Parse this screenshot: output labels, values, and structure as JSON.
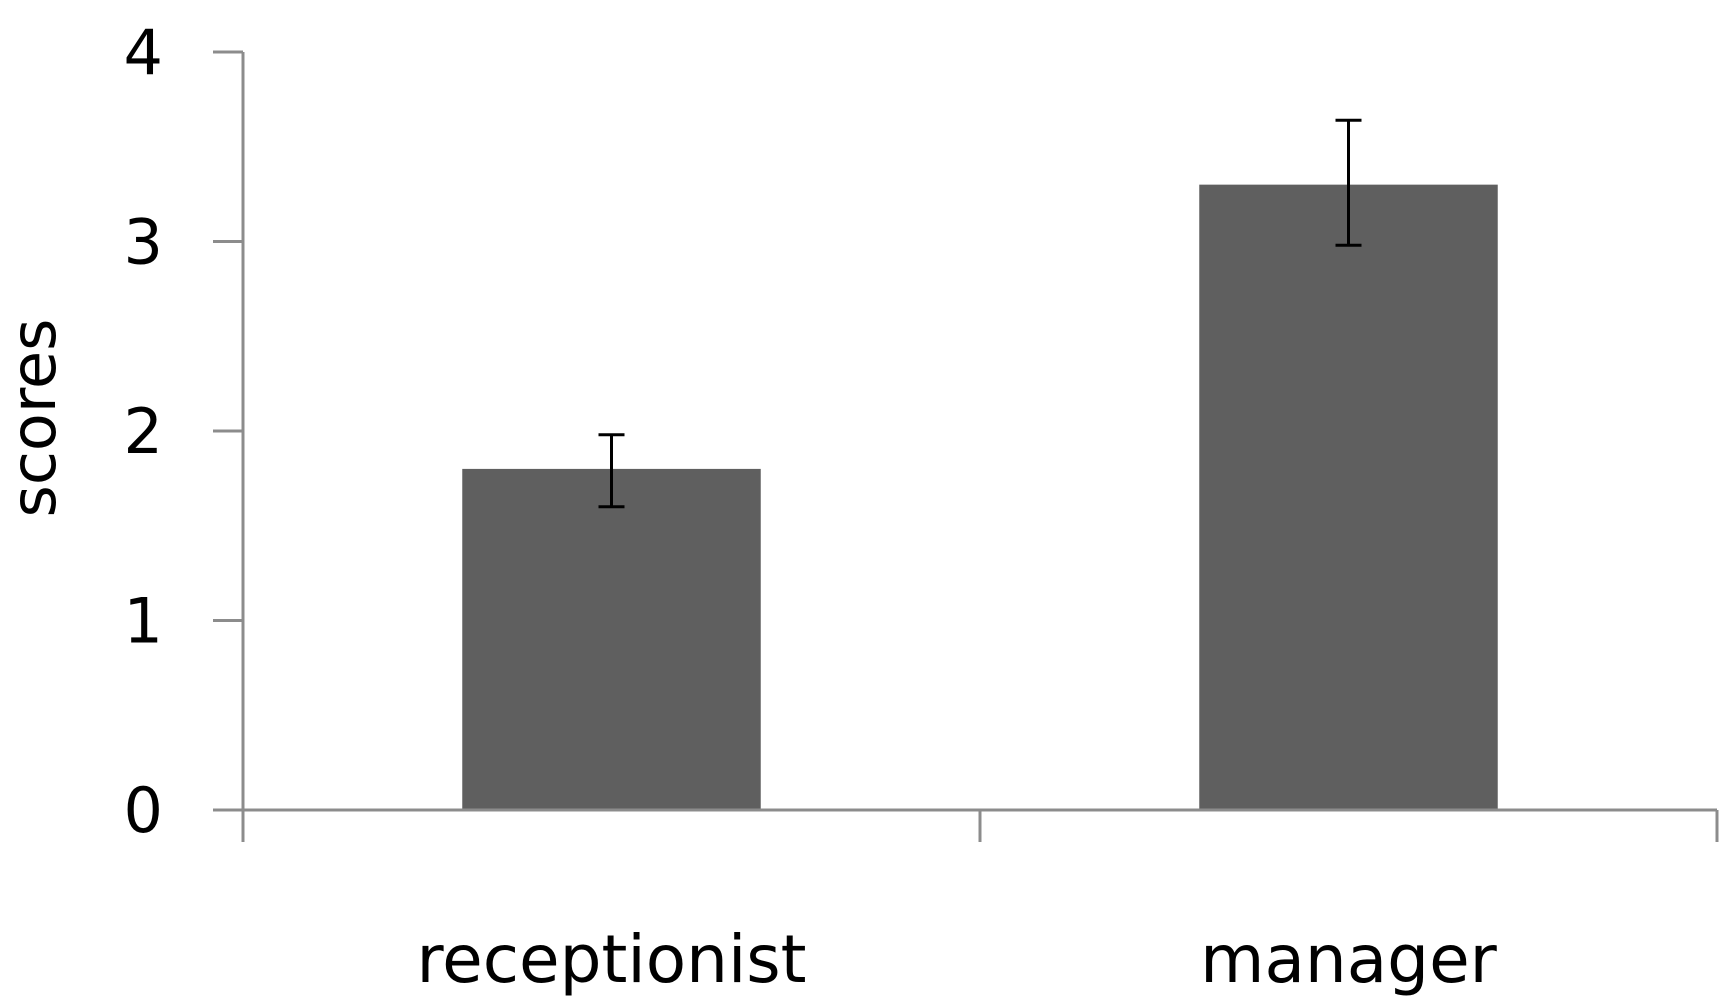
{
  "chart_data": {
    "type": "bar",
    "title": "",
    "xlabel": "",
    "ylabel": "scores",
    "categories": [
      "receptionist",
      "manager"
    ],
    "values": [
      1.8,
      3.3
    ],
    "error": [
      {
        "low": 1.6,
        "high": 1.98
      },
      {
        "low": 2.98,
        "high": 3.64
      }
    ],
    "ylim": [
      0,
      4
    ],
    "yticks": [
      "0",
      "1",
      "2",
      "3",
      "4"
    ],
    "grid": false,
    "legend": "none",
    "colors": {
      "bar": "#5f5f5f",
      "axis": "#8c8c8c",
      "errorbar": "#000000"
    }
  }
}
